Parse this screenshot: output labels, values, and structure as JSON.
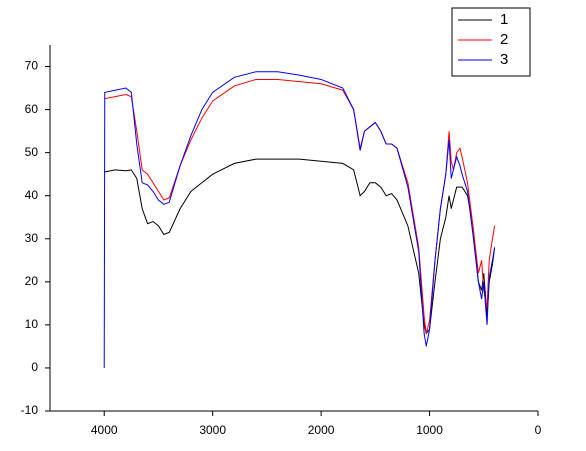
{
  "chart_data": {
    "type": "line",
    "xlim": [
      4500,
      0
    ],
    "ylim": [
      -10,
      75
    ],
    "xticks": [
      4000,
      3000,
      2000,
      1000,
      0
    ],
    "yticks": [
      -10,
      0,
      10,
      20,
      30,
      40,
      50,
      60,
      70
    ],
    "legend": "top-right",
    "series": [
      {
        "name": "1",
        "color": "#000000",
        "x": [
          4000,
          3900,
          3800,
          3750,
          3700,
          3650,
          3600,
          3550,
          3500,
          3450,
          3400,
          3300,
          3200,
          3100,
          3000,
          2800,
          2600,
          2400,
          2200,
          2000,
          1800,
          1700,
          1640,
          1600,
          1550,
          1500,
          1450,
          1400,
          1350,
          1300,
          1200,
          1100,
          1050,
          1030,
          1000,
          950,
          900,
          850,
          820,
          800,
          780,
          750,
          700,
          650,
          600,
          550,
          520,
          500,
          470,
          450,
          420,
          400
        ],
        "values": [
          45.5,
          46,
          45.8,
          46,
          44,
          37,
          33.5,
          34,
          33,
          31,
          31.5,
          37,
          41,
          43,
          45,
          47.5,
          48.5,
          48.5,
          48.5,
          48,
          47.5,
          46,
          40,
          41,
          43,
          43,
          42,
          40,
          40.5,
          39,
          33,
          22,
          10,
          8,
          9,
          20,
          30,
          35,
          40,
          37,
          39,
          42,
          42,
          40,
          33,
          20,
          18,
          22,
          12,
          20,
          24,
          28
        ]
      },
      {
        "name": "2",
        "color": "#ff0000",
        "x": [
          4000,
          3900,
          3800,
          3750,
          3700,
          3650,
          3600,
          3550,
          3500,
          3450,
          3400,
          3300,
          3200,
          3100,
          3000,
          2800,
          2600,
          2400,
          2200,
          2000,
          1800,
          1700,
          1640,
          1600,
          1550,
          1500,
          1450,
          1400,
          1350,
          1300,
          1200,
          1100,
          1050,
          1030,
          1000,
          950,
          900,
          850,
          820,
          800,
          780,
          750,
          720,
          700,
          650,
          600,
          550,
          520,
          500,
          470,
          450,
          420,
          400
        ],
        "values": [
          62.5,
          63,
          63.5,
          63,
          55,
          46,
          45,
          43,
          41,
          39,
          39.5,
          47,
          53,
          58,
          62,
          65.5,
          67,
          67,
          66.5,
          66,
          64.5,
          60,
          51,
          55,
          56,
          57,
          55,
          52,
          52,
          51,
          43,
          28,
          12,
          8,
          11,
          25,
          37,
          45,
          55,
          48,
          46,
          50,
          51,
          49,
          43,
          33,
          22,
          25,
          18,
          14,
          25,
          30,
          33
        ]
      },
      {
        "name": "3",
        "color": "#0000ff",
        "x": [
          4000,
          3995,
          3900,
          3800,
          3750,
          3700,
          3650,
          3600,
          3550,
          3500,
          3450,
          3400,
          3300,
          3200,
          3100,
          3000,
          2800,
          2600,
          2400,
          2200,
          2000,
          1800,
          1700,
          1640,
          1600,
          1550,
          1500,
          1450,
          1400,
          1350,
          1300,
          1200,
          1100,
          1050,
          1030,
          1000,
          950,
          900,
          850,
          820,
          800,
          780,
          750,
          720,
          700,
          650,
          600,
          550,
          520,
          500,
          470,
          450,
          420,
          400
        ],
        "values": [
          0,
          64,
          64.5,
          65,
          64,
          52,
          43,
          42.5,
          41,
          39,
          38,
          38.5,
          47,
          54,
          60,
          64,
          67.5,
          68.8,
          68.8,
          68,
          67,
          65,
          60,
          50.5,
          55,
          56,
          57,
          55,
          52,
          52,
          51,
          42,
          27,
          8,
          5,
          9,
          25,
          37,
          45,
          53,
          44,
          46,
          49,
          47,
          45,
          41,
          31,
          20,
          16,
          20,
          10,
          21,
          25,
          28
        ]
      }
    ]
  }
}
